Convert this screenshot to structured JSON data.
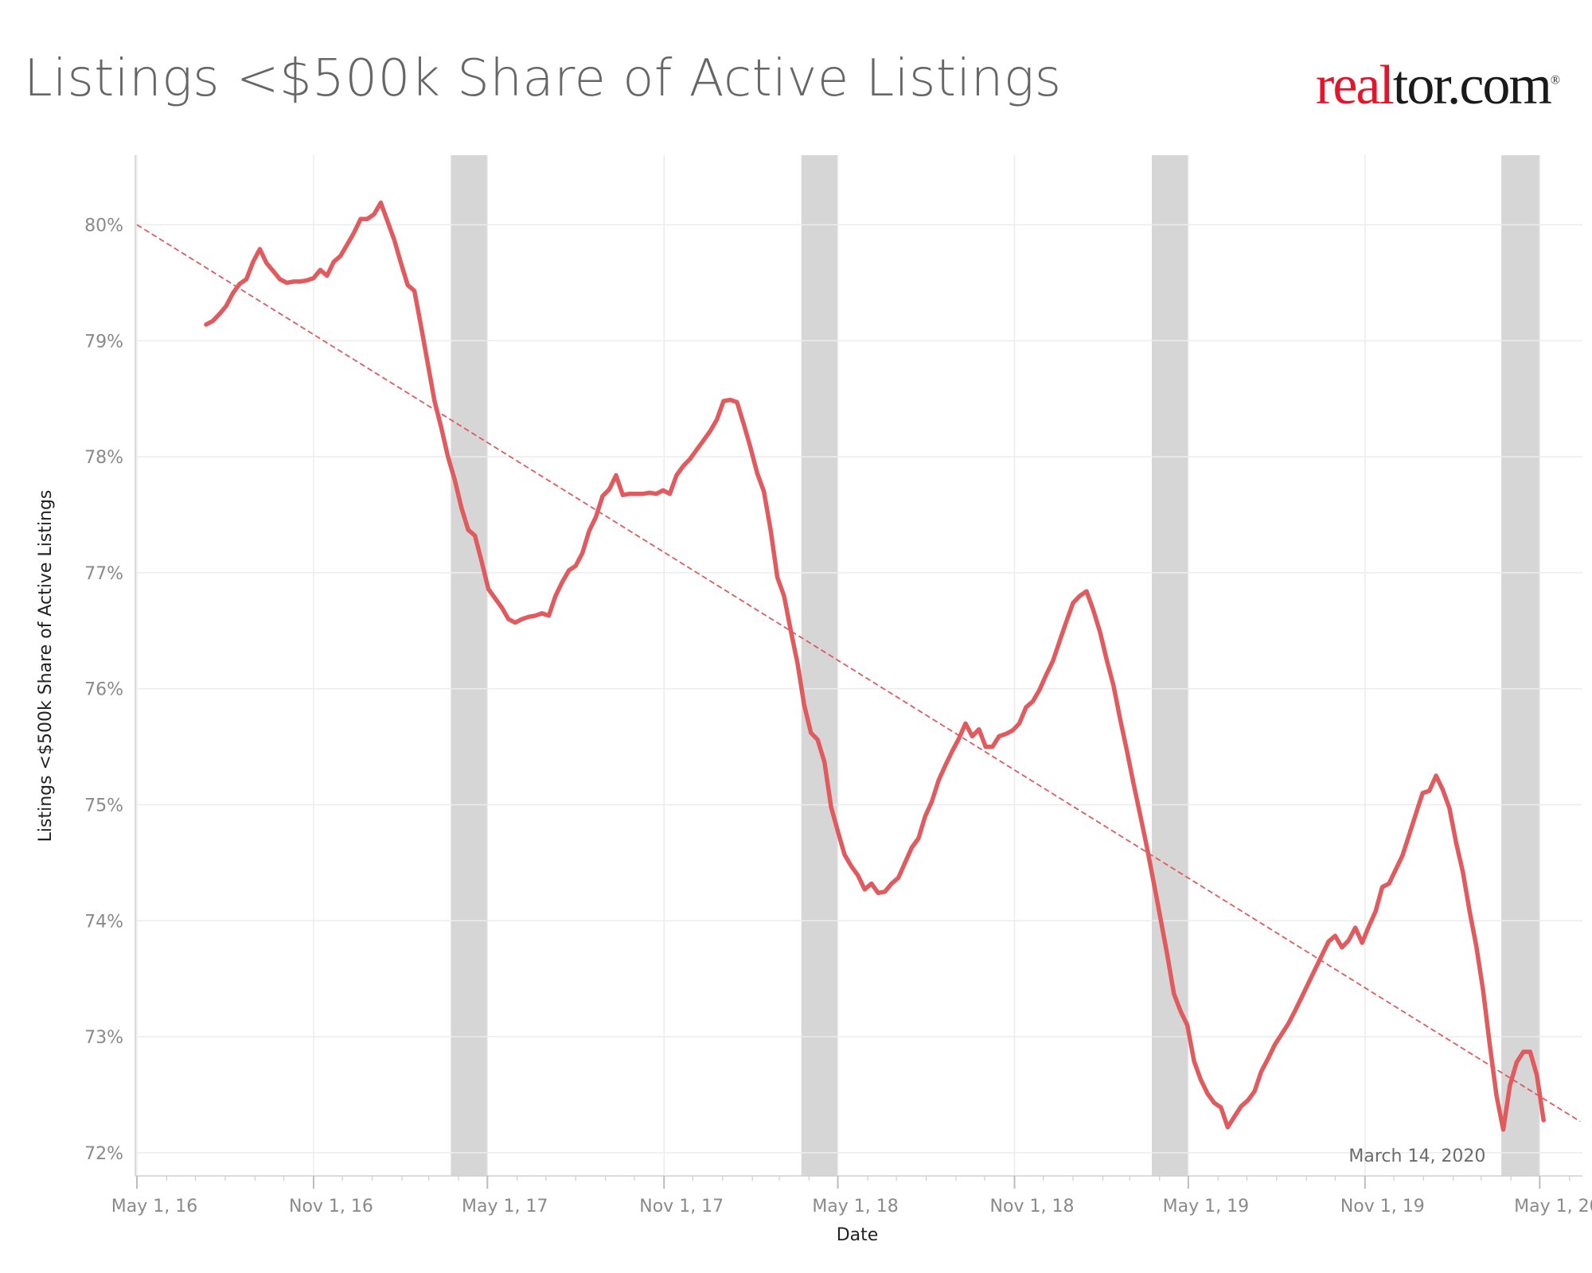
{
  "header": {
    "title": "Listings <$500k Share of Active Listings",
    "logo_part1": "real",
    "logo_part2": "tor.com",
    "logo_mark": "®"
  },
  "colors": {
    "series": "#e05a5e",
    "trend": "#e05a5e",
    "shade": "#d6d6d6",
    "grid": "#ececec",
    "logo_red": "#e3152b"
  },
  "chart_data": {
    "type": "line",
    "title": "Listings <$500k Share of Active Listings",
    "xlabel": "Date",
    "ylabel": "Listings <$500k Share of Active Listings",
    "x_range": [
      "2016-05-01",
      "2020-06-12"
    ],
    "ylim": [
      71.8,
      80.6
    ],
    "y_ticks": [
      72,
      73,
      74,
      75,
      76,
      77,
      78,
      79,
      80
    ],
    "y_tick_labels": [
      "72%",
      "73%",
      "74%",
      "75%",
      "76%",
      "77%",
      "78%",
      "79%",
      "80%"
    ],
    "x_ticks": [
      "2016-05-01",
      "2016-11-01",
      "2017-05-01",
      "2017-11-01",
      "2018-05-01",
      "2018-11-01",
      "2019-05-01",
      "2019-11-01",
      "2020-05-01"
    ],
    "x_tick_labels": [
      "May 1, 16",
      "Nov 1, 16",
      "May 1, 17",
      "Nov 1, 17",
      "May 1, 18",
      "Nov 1, 18",
      "May 1, 19",
      "Nov 1, 19",
      "May 1, 20"
    ],
    "grid": true,
    "legend": "none",
    "shaded_periods": [
      {
        "start": "2017-03-24",
        "end": "2017-05-01"
      },
      {
        "start": "2018-03-24",
        "end": "2018-05-01"
      },
      {
        "start": "2019-03-24",
        "end": "2019-05-01"
      },
      {
        "start": "2020-03-22",
        "end": "2020-05-01"
      }
    ],
    "annotation": {
      "text": "March 14, 2020",
      "date": "2020-03-14",
      "y": 71.98
    },
    "trend_line": {
      "x": [
        "2016-05-01",
        "2020-06-12"
      ],
      "y": [
        80.0,
        72.27
      ]
    },
    "series": [
      {
        "name": "",
        "x": [
          "2016-07-12",
          "2016-07-19",
          "2016-07-26",
          "2016-08-02",
          "2016-08-09",
          "2016-08-16",
          "2016-08-23",
          "2016-08-30",
          "2016-09-06",
          "2016-09-13",
          "2016-09-20",
          "2016-09-27",
          "2016-10-04",
          "2016-10-11",
          "2016-10-18",
          "2016-10-25",
          "2016-11-01",
          "2016-11-08",
          "2016-11-15",
          "2016-11-22",
          "2016-11-29",
          "2016-12-06",
          "2016-12-13",
          "2016-12-20",
          "2016-12-27",
          "2017-01-03",
          "2017-01-10",
          "2017-01-17",
          "2017-01-24",
          "2017-01-31",
          "2017-02-07",
          "2017-02-14",
          "2017-02-21",
          "2017-02-28",
          "2017-03-07",
          "2017-03-14",
          "2017-03-21",
          "2017-03-28",
          "2017-04-04",
          "2017-04-11",
          "2017-04-18",
          "2017-04-25",
          "2017-05-02",
          "2017-05-09",
          "2017-05-16",
          "2017-05-23",
          "2017-05-30",
          "2017-06-06",
          "2017-06-13",
          "2017-06-20",
          "2017-06-27",
          "2017-07-04",
          "2017-07-11",
          "2017-07-18",
          "2017-07-25",
          "2017-08-01",
          "2017-08-08",
          "2017-08-15",
          "2017-08-22",
          "2017-08-29",
          "2017-09-05",
          "2017-09-12",
          "2017-09-19",
          "2017-09-26",
          "2017-10-03",
          "2017-10-10",
          "2017-10-17",
          "2017-10-24",
          "2017-10-31",
          "2017-11-07",
          "2017-11-14",
          "2017-11-21",
          "2017-11-28",
          "2017-12-05",
          "2017-12-12",
          "2017-12-19",
          "2017-12-26",
          "2018-01-02",
          "2018-01-09",
          "2018-01-16",
          "2018-01-23",
          "2018-01-30",
          "2018-02-06",
          "2018-02-13",
          "2018-02-20",
          "2018-02-27",
          "2018-03-06",
          "2018-03-13",
          "2018-03-20",
          "2018-03-27",
          "2018-04-03",
          "2018-04-10",
          "2018-04-17",
          "2018-04-24",
          "2018-05-01",
          "2018-05-08",
          "2018-05-15",
          "2018-05-22",
          "2018-05-29",
          "2018-06-05",
          "2018-06-12",
          "2018-06-19",
          "2018-06-26",
          "2018-07-03",
          "2018-07-10",
          "2018-07-17",
          "2018-07-24",
          "2018-07-31",
          "2018-08-07",
          "2018-08-14",
          "2018-08-21",
          "2018-08-28",
          "2018-09-04",
          "2018-09-11",
          "2018-09-18",
          "2018-09-25",
          "2018-10-02",
          "2018-10-09",
          "2018-10-16",
          "2018-10-23",
          "2018-10-30",
          "2018-11-06",
          "2018-11-13",
          "2018-11-20",
          "2018-11-27",
          "2018-12-04",
          "2018-12-11",
          "2018-12-18",
          "2018-12-25",
          "2019-01-01",
          "2019-01-08",
          "2019-01-15",
          "2019-01-22",
          "2019-01-29",
          "2019-02-05",
          "2019-02-12",
          "2019-02-19",
          "2019-02-26",
          "2019-03-05",
          "2019-03-12",
          "2019-03-19",
          "2019-03-26",
          "2019-04-02",
          "2019-04-09",
          "2019-04-16",
          "2019-04-23",
          "2019-04-30",
          "2019-05-07",
          "2019-05-14",
          "2019-05-21",
          "2019-05-28",
          "2019-06-04",
          "2019-06-11",
          "2019-06-18",
          "2019-06-25",
          "2019-07-02",
          "2019-07-09",
          "2019-07-16",
          "2019-07-23",
          "2019-07-30",
          "2019-08-06",
          "2019-08-13",
          "2019-08-20",
          "2019-08-27",
          "2019-09-03",
          "2019-09-10",
          "2019-09-17",
          "2019-09-24",
          "2019-10-01",
          "2019-10-08",
          "2019-10-15",
          "2019-10-22",
          "2019-10-29",
          "2019-11-05",
          "2019-11-12",
          "2019-11-19",
          "2019-11-26",
          "2019-12-03",
          "2019-12-10",
          "2019-12-17",
          "2019-12-24",
          "2019-12-31",
          "2020-01-07",
          "2020-01-14",
          "2020-01-21",
          "2020-01-28",
          "2020-02-04",
          "2020-02-11",
          "2020-02-18",
          "2020-02-25",
          "2020-03-03",
          "2020-03-10",
          "2020-03-17",
          "2020-03-24",
          "2020-03-31",
          "2020-04-07",
          "2020-04-14",
          "2020-04-21",
          "2020-04-28",
          "2020-05-05"
        ],
        "y": [
          79.14,
          79.17,
          79.23,
          79.3,
          79.41,
          79.49,
          79.53,
          79.68,
          79.79,
          79.67,
          79.6,
          79.53,
          79.5,
          79.51,
          79.51,
          79.52,
          79.54,
          79.61,
          79.56,
          79.68,
          79.73,
          79.83,
          79.93,
          80.05,
          80.05,
          80.09,
          80.19,
          80.03,
          79.87,
          79.67,
          79.48,
          79.43,
          79.12,
          78.8,
          78.48,
          78.25,
          78.0,
          77.8,
          77.56,
          77.37,
          77.32,
          77.1,
          76.86,
          76.78,
          76.7,
          76.6,
          76.57,
          76.6,
          76.62,
          76.63,
          76.65,
          76.63,
          76.8,
          76.92,
          77.02,
          77.06,
          77.17,
          77.36,
          77.48,
          77.66,
          77.72,
          77.84,
          77.67,
          77.68,
          77.68,
          77.68,
          77.69,
          77.68,
          77.71,
          77.68,
          77.84,
          77.92,
          77.98,
          78.06,
          78.14,
          78.22,
          78.32,
          78.48,
          78.49,
          78.47,
          78.28,
          78.08,
          77.86,
          77.7,
          77.37,
          76.96,
          76.8,
          76.5,
          76.22,
          75.86,
          75.62,
          75.56,
          75.37,
          74.98,
          74.77,
          74.57,
          74.47,
          74.39,
          74.27,
          74.32,
          74.24,
          74.25,
          74.32,
          74.37,
          74.5,
          74.63,
          74.71,
          74.9,
          75.03,
          75.21,
          75.34,
          75.46,
          75.57,
          75.7,
          75.59,
          75.65,
          75.5,
          75.5,
          75.59,
          75.61,
          75.64,
          75.7,
          75.84,
          75.89,
          75.99,
          76.12,
          76.24,
          76.41,
          76.58,
          76.74,
          76.8,
          76.84,
          76.68,
          76.49,
          76.25,
          76.03,
          75.74,
          75.47,
          75.18,
          74.91,
          74.63,
          74.33,
          74.02,
          73.71,
          73.37,
          73.22,
          73.1,
          72.79,
          72.63,
          72.51,
          72.43,
          72.39,
          72.22,
          72.31,
          72.4,
          72.45,
          72.53,
          72.7,
          72.81,
          72.93,
          73.02,
          73.11,
          73.22,
          73.34,
          73.46,
          73.58,
          73.7,
          73.82,
          73.87,
          73.77,
          73.83,
          73.94,
          73.81,
          73.95,
          74.08,
          74.29,
          74.32,
          74.44,
          74.56,
          74.74,
          74.92,
          75.1,
          75.12,
          75.25,
          75.13,
          74.97,
          74.67,
          74.42,
          74.08,
          73.78,
          73.4,
          72.93,
          72.49,
          72.2,
          72.58,
          72.78,
          72.87,
          72.87,
          72.67,
          72.28
        ]
      }
    ]
  }
}
